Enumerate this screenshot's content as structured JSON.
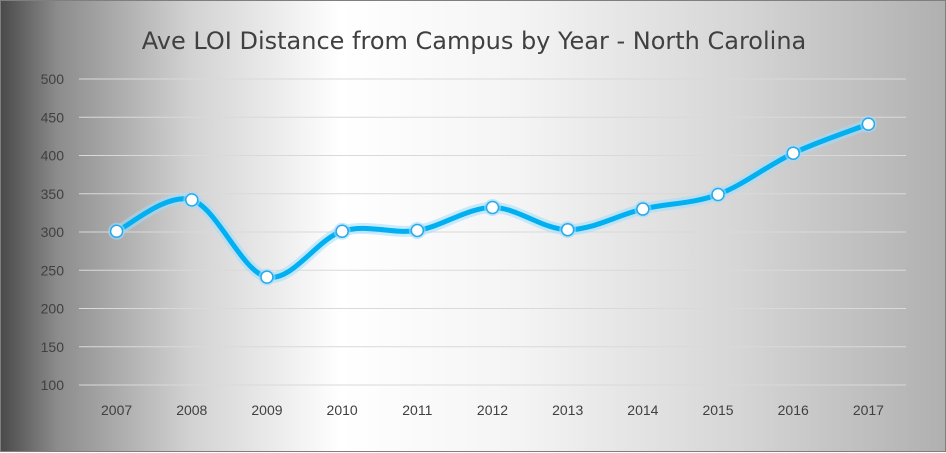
{
  "chart_data": {
    "type": "line",
    "title": "Ave LOI Distance from Campus by Year - North Carolina",
    "xlabel": "",
    "ylabel": "",
    "categories": [
      "2007",
      "2008",
      "2009",
      "2010",
      "2011",
      "2012",
      "2013",
      "2014",
      "2015",
      "2016",
      "2017"
    ],
    "series": [
      {
        "values": [
          301,
          342,
          241,
          301,
          302,
          332,
          303,
          330,
          349,
          403,
          441
        ]
      }
    ],
    "ylim": [
      100,
      500
    ],
    "yticks": [
      "100",
      "150",
      "200",
      "250",
      "300",
      "350",
      "400",
      "450",
      "500"
    ],
    "grid": true,
    "smooth": true,
    "markers": true,
    "legend": "none",
    "colors": {
      "line": "#00b0f0",
      "glow": "#9fdcff",
      "marker_fill": "#ffffff",
      "marker_stroke": "#2aa9e8",
      "grid": "#d9d9d9"
    }
  }
}
